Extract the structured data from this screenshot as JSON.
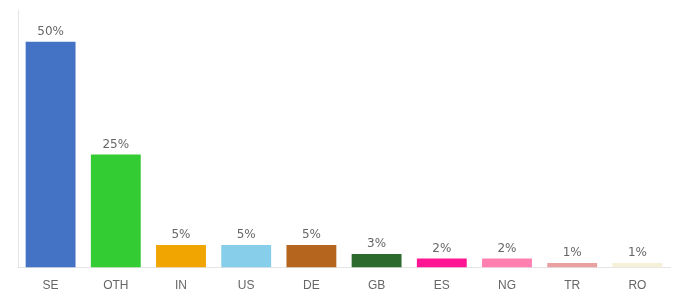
{
  "chart_data": {
    "type": "bar",
    "categories": [
      "SE",
      "OTH",
      "IN",
      "US",
      "DE",
      "GB",
      "ES",
      "NG",
      "TR",
      "RO"
    ],
    "values": [
      50,
      25,
      5,
      5,
      5,
      3,
      2,
      2,
      1,
      1
    ],
    "value_labels": [
      "50%",
      "25%",
      "5%",
      "5%",
      "5%",
      "3%",
      "2%",
      "2%",
      "1%",
      "1%"
    ],
    "colors": [
      "#4472c4",
      "#33cc33",
      "#f0a500",
      "#87ceeb",
      "#b5651d",
      "#2d6a2d",
      "#ff1493",
      "#ff80b0",
      "#e8a0a0",
      "#f5f0d8"
    ],
    "ylim": [
      0,
      57
    ],
    "grid": false,
    "data_labels": true,
    "tick_labels": "x"
  }
}
